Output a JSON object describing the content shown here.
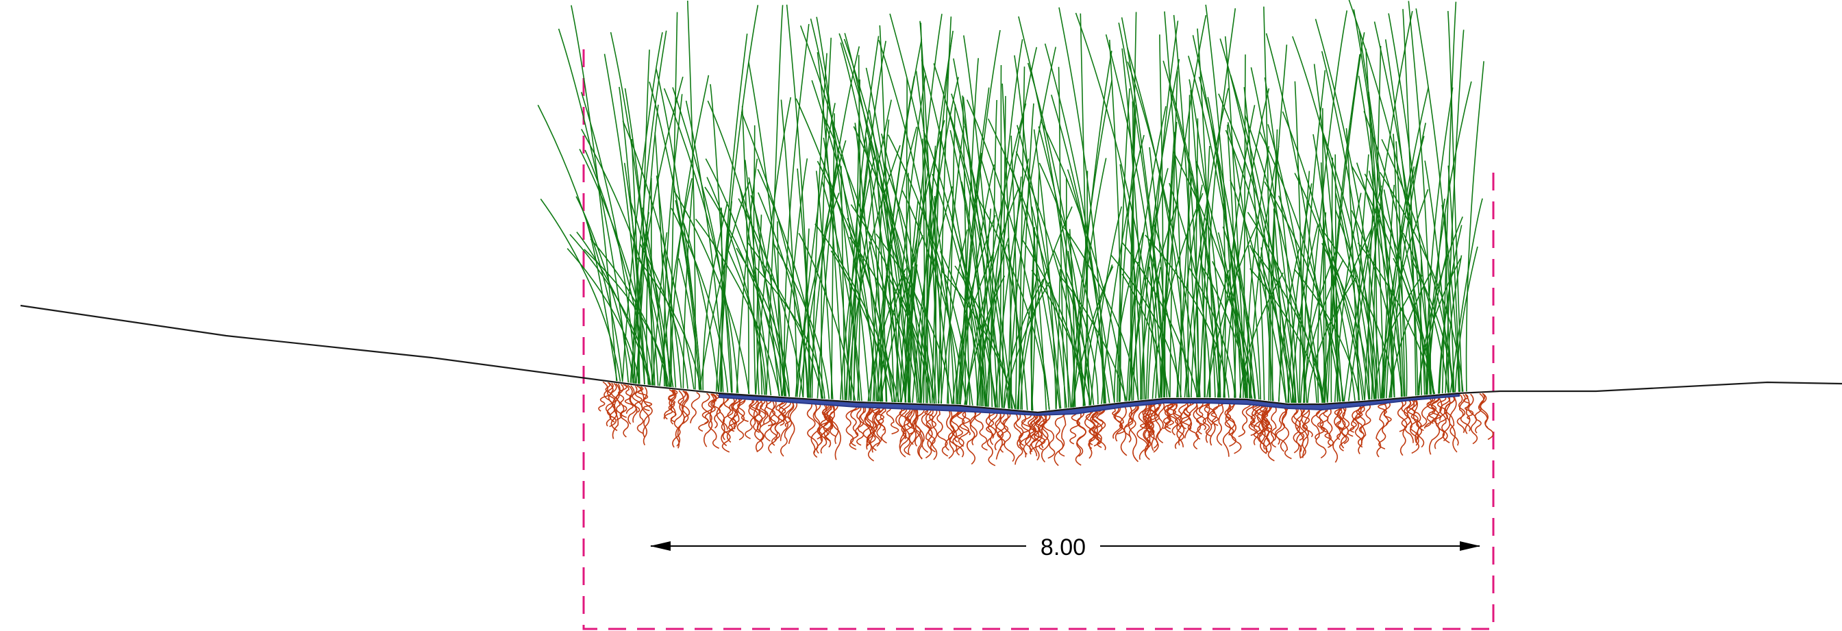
{
  "dimension": {
    "label": "8.00"
  },
  "colors": {
    "background": "#ffffff",
    "ground_line": "#1a1a1a",
    "water": "#3a4fa8",
    "water_edge": "#2a3a8a",
    "grass": "#0f7a14",
    "roots": "#c03a10",
    "boundary": "#e0187e",
    "dimension_line": "#000000"
  },
  "icons": {
    "arrow_left": "arrowhead-left-icon",
    "arrow_right": "arrowhead-right-icon"
  }
}
